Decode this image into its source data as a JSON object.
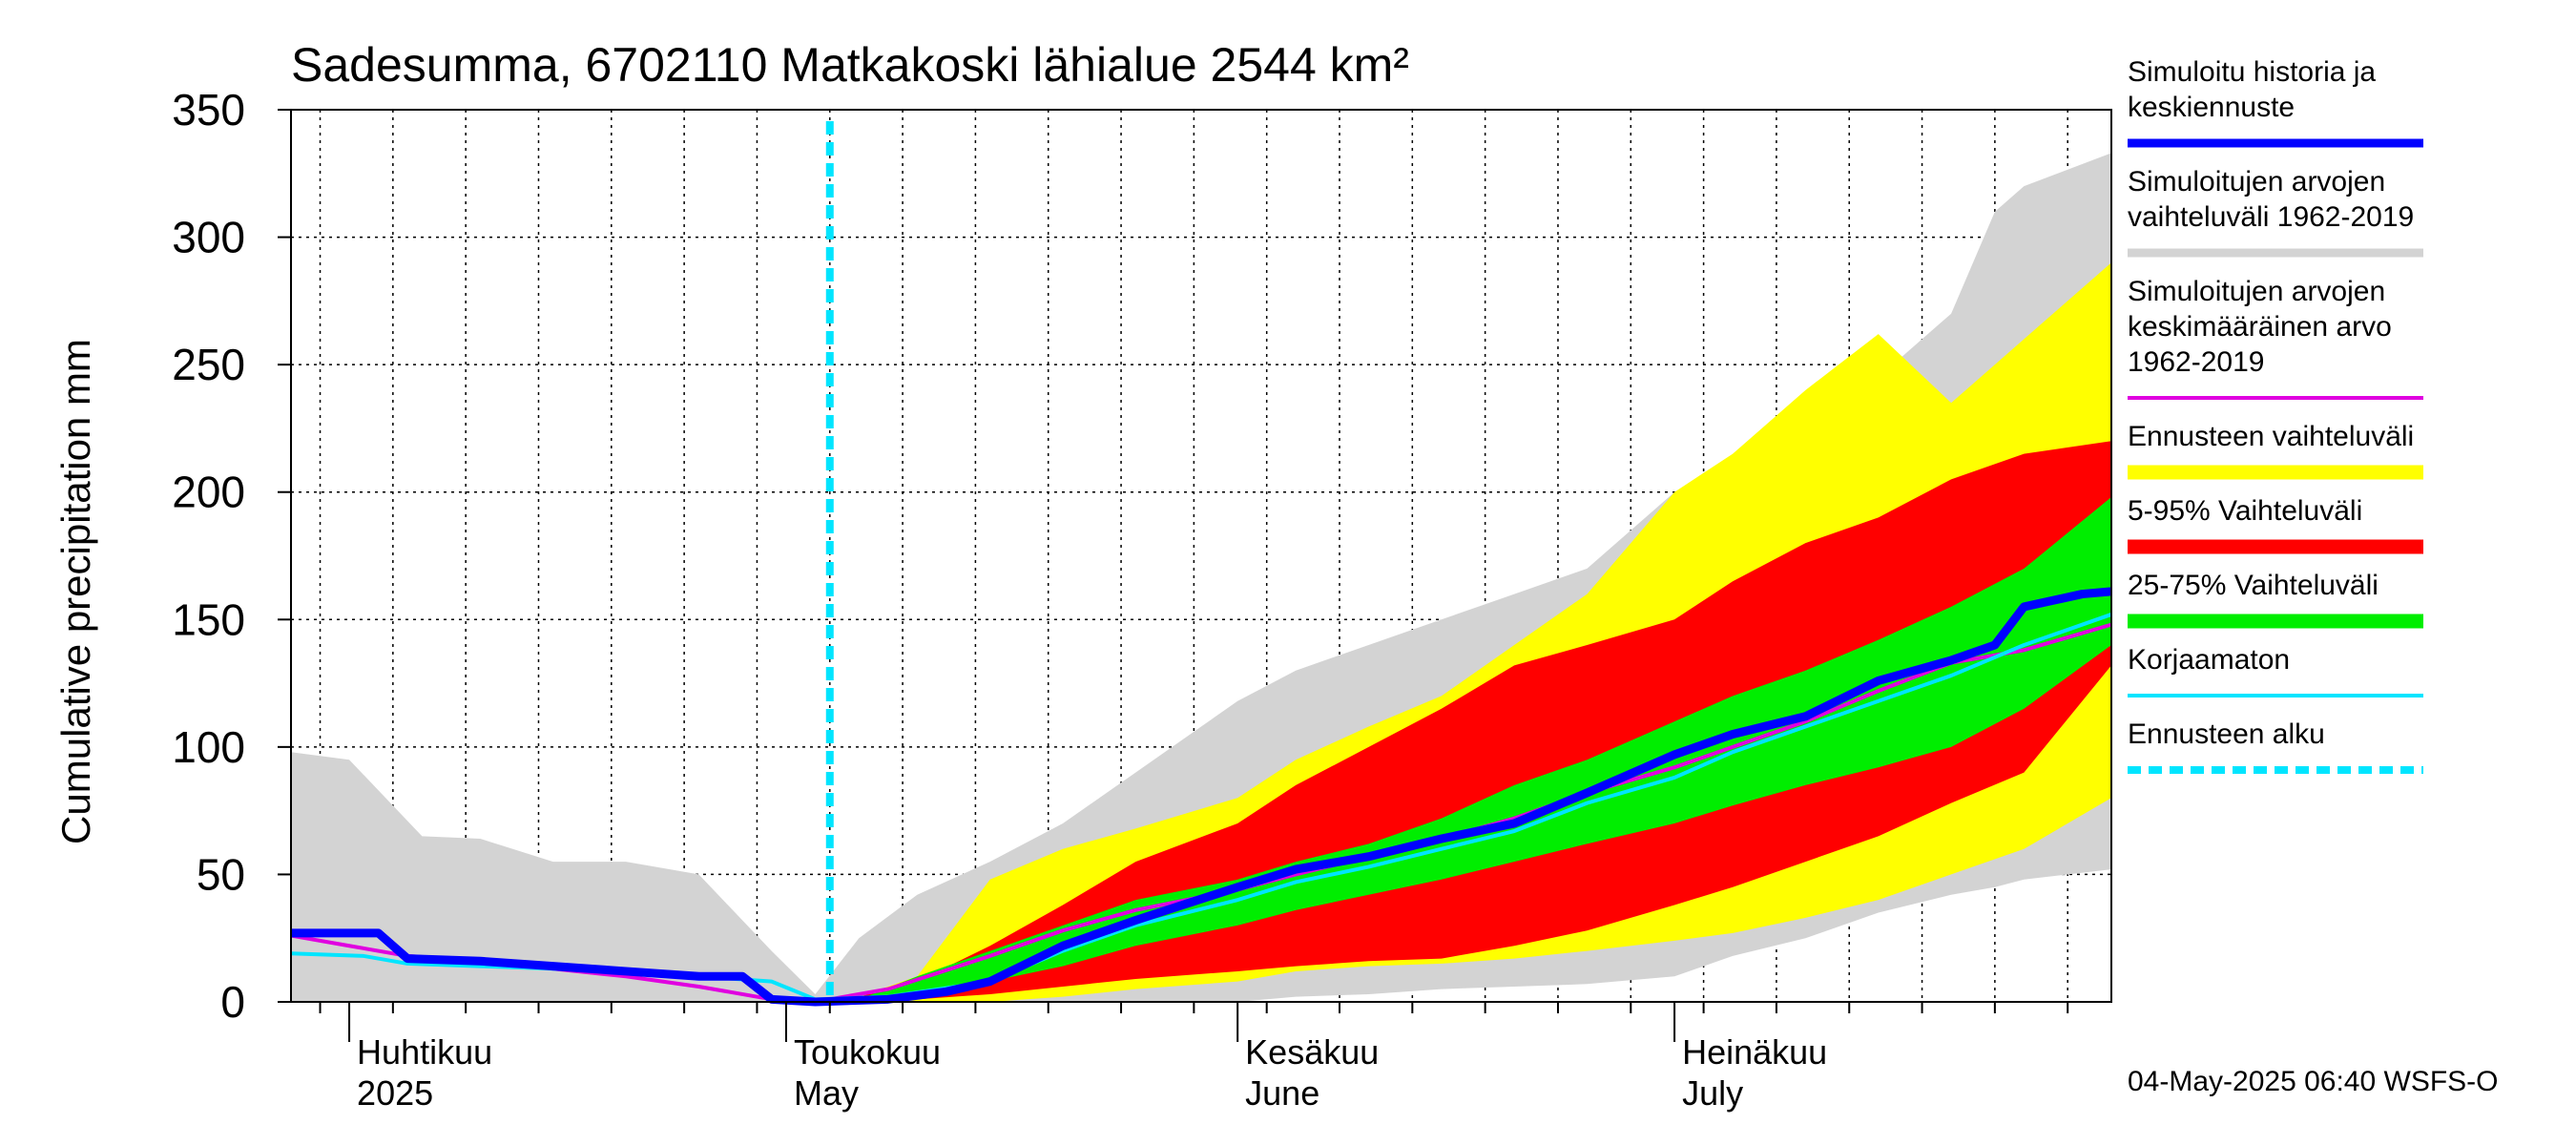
{
  "title": "Sadesumma, 6702110 Matkakoski lähialue 2544 km²",
  "timestamp": "04-May-2025 06:40 WSFS-O",
  "colors": {
    "history": "#0000ff",
    "range_all": "#d3d3d3",
    "mean": "#e000e0",
    "forecast_range": "#ffff00",
    "p5_95": "#ff0000",
    "p25_75": "#00ee00",
    "uncorrected": "#00e5ff",
    "forecast_start": "#00e5ff"
  },
  "legend": [
    {
      "label": "Simuloitu historia ja keskiennuste",
      "lines": [
        "Simuloitu historia ja",
        "keskiennuste"
      ],
      "color": "#0000ff",
      "style": "thick"
    },
    {
      "label": "Simuloitujen arvojen vaihteluväli 1962-2019",
      "lines": [
        "Simuloitujen arvojen",
        "vaihteluväli 1962-2019"
      ],
      "color": "#d3d3d3",
      "style": "thick"
    },
    {
      "label": "Simuloitujen arvojen keskimääräinen arvo 1962-2019",
      "lines": [
        "Simuloitujen arvojen",
        "keskimääräinen arvo",
        "   1962-2019"
      ],
      "color": "#e000e0",
      "style": "thin"
    },
    {
      "label": "Ennusteen vaihteluväli",
      "lines": [
        "Ennusteen vaihteluväli"
      ],
      "color": "#ffff00",
      "style": "band"
    },
    {
      "label": "5-95% Vaihteluväli",
      "lines": [
        "5-95% Vaihteluväli"
      ],
      "color": "#ff0000",
      "style": "band"
    },
    {
      "label": "25-75% Vaihteluväli",
      "lines": [
        "25-75% Vaihteluväli"
      ],
      "color": "#00ee00",
      "style": "band"
    },
    {
      "label": "Korjaamaton",
      "lines": [
        "Korjaamaton"
      ],
      "color": "#00e5ff",
      "style": "thin"
    },
    {
      "label": "Ennusteen alku",
      "lines": [
        "Ennusteen alku"
      ],
      "color": "#00e5ff",
      "style": "dashed"
    }
  ],
  "chart_data": {
    "type": "area",
    "title": "Sadesumma, 6702110 Matkakoski lähialue 2544 km²",
    "ylabel": "Cumulative precipitation   mm",
    "xlabel": "",
    "x_range": [
      "2025-03-28",
      "2025-07-31"
    ],
    "ylim": [
      0,
      350
    ],
    "yticks": [
      0,
      50,
      100,
      150,
      200,
      250,
      300,
      350
    ],
    "grid": true,
    "legend_position": "right",
    "months": [
      {
        "date": "2025-04-01",
        "fi": "Huhtikuu",
        "en": "2025"
      },
      {
        "date": "2025-05-01",
        "fi": "Toukokuu",
        "en": "May"
      },
      {
        "date": "2025-06-01",
        "fi": "Kesäkuu",
        "en": "June"
      },
      {
        "date": "2025-07-01",
        "fi": "Heinäkuu",
        "en": "July"
      }
    ],
    "forecast_start": "2025-05-04",
    "series": [
      {
        "name": "Simuloitujen arvojen vaihteluväli 1962-2019",
        "kind": "band",
        "color": "#d3d3d3",
        "x": [
          "2025-03-28",
          "2025-04-01",
          "2025-04-06",
          "2025-04-10",
          "2025-04-15",
          "2025-04-20",
          "2025-04-25",
          "2025-04-30",
          "2025-05-03",
          "2025-05-06",
          "2025-05-10",
          "2025-05-15",
          "2025-05-20",
          "2025-05-25",
          "2025-06-01",
          "2025-06-05",
          "2025-06-10",
          "2025-06-15",
          "2025-06-20",
          "2025-06-25",
          "2025-07-01",
          "2025-07-05",
          "2025-07-10",
          "2025-07-15",
          "2025-07-20",
          "2025-07-23",
          "2025-07-25",
          "2025-07-31"
        ],
        "low": [
          0,
          0,
          0,
          0,
          0,
          0,
          0,
          0,
          0,
          0,
          0,
          0,
          0,
          0,
          0,
          2,
          3,
          5,
          6,
          7,
          10,
          18,
          25,
          35,
          42,
          45,
          48,
          52
        ],
        "high": [
          98,
          95,
          65,
          64,
          55,
          55,
          50,
          20,
          3,
          25,
          42,
          55,
          70,
          90,
          118,
          130,
          140,
          150,
          160,
          170,
          200,
          210,
          225,
          245,
          270,
          310,
          320,
          333
        ]
      },
      {
        "name": "Ennusteen vaihteluväli",
        "kind": "band",
        "color": "#ffff00",
        "x": [
          "2025-05-03",
          "2025-05-06",
          "2025-05-10",
          "2025-05-15",
          "2025-05-20",
          "2025-05-25",
          "2025-06-01",
          "2025-06-05",
          "2025-06-10",
          "2025-06-15",
          "2025-06-20",
          "2025-06-25",
          "2025-07-01",
          "2025-07-05",
          "2025-07-10",
          "2025-07-15",
          "2025-07-20",
          "2025-07-25",
          "2025-07-31"
        ],
        "low": [
          0,
          0,
          0,
          0,
          2,
          5,
          8,
          12,
          14,
          15,
          17,
          20,
          24,
          27,
          33,
          40,
          50,
          60,
          80
        ],
        "high": [
          0,
          2,
          10,
          48,
          60,
          68,
          80,
          95,
          108,
          120,
          140,
          160,
          200,
          215,
          240,
          262,
          235,
          260,
          290
        ]
      },
      {
        "name": "5-95% Vaihteluväli",
        "kind": "band",
        "color": "#ff0000",
        "x": [
          "2025-05-03",
          "2025-05-06",
          "2025-05-10",
          "2025-05-15",
          "2025-05-20",
          "2025-05-25",
          "2025-06-01",
          "2025-06-05",
          "2025-06-10",
          "2025-06-15",
          "2025-06-20",
          "2025-06-25",
          "2025-07-01",
          "2025-07-05",
          "2025-07-10",
          "2025-07-15",
          "2025-07-20",
          "2025-07-25",
          "2025-07-31"
        ],
        "low": [
          0,
          0,
          1,
          3,
          6,
          9,
          12,
          14,
          16,
          17,
          22,
          28,
          38,
          45,
          55,
          65,
          78,
          90,
          132
        ],
        "high": [
          0,
          2,
          8,
          22,
          38,
          55,
          70,
          85,
          100,
          115,
          132,
          140,
          150,
          165,
          180,
          190,
          205,
          215,
          220
        ]
      },
      {
        "name": "25-75% Vaihteluväli",
        "kind": "band",
        "color": "#00ee00",
        "x": [
          "2025-05-03",
          "2025-05-06",
          "2025-05-10",
          "2025-05-15",
          "2025-05-20",
          "2025-05-25",
          "2025-06-01",
          "2025-06-05",
          "2025-06-10",
          "2025-06-15",
          "2025-06-20",
          "2025-06-25",
          "2025-07-01",
          "2025-07-05",
          "2025-07-10",
          "2025-07-15",
          "2025-07-20",
          "2025-07-25",
          "2025-07-31"
        ],
        "low": [
          0,
          0,
          3,
          8,
          14,
          22,
          30,
          36,
          42,
          48,
          55,
          62,
          70,
          77,
          85,
          92,
          100,
          115,
          140
        ],
        "high": [
          0,
          1,
          10,
          20,
          30,
          40,
          48,
          55,
          62,
          72,
          85,
          95,
          110,
          120,
          130,
          142,
          155,
          170,
          198
        ]
      },
      {
        "name": "Simuloitujen arvojen keskimääräinen arvo 1962-2019",
        "kind": "line",
        "color": "#e000e0",
        "width": 4,
        "x": [
          "2025-03-28",
          "2025-04-01",
          "2025-04-05",
          "2025-04-10",
          "2025-04-15",
          "2025-04-20",
          "2025-04-25",
          "2025-04-30",
          "2025-05-03",
          "2025-05-08",
          "2025-05-15",
          "2025-05-20",
          "2025-05-25",
          "2025-06-01",
          "2025-06-05",
          "2025-06-10",
          "2025-06-15",
          "2025-06-20",
          "2025-06-25",
          "2025-07-01",
          "2025-07-05",
          "2025-07-10",
          "2025-07-15",
          "2025-07-20",
          "2025-07-25",
          "2025-07-31"
        ],
        "y": [
          26,
          22,
          18,
          16,
          13,
          10,
          6,
          1,
          0,
          5,
          18,
          28,
          36,
          44,
          50,
          57,
          64,
          72,
          82,
          92,
          100,
          110,
          122,
          133,
          138,
          148
        ]
      },
      {
        "name": "Korjaamaton",
        "kind": "line",
        "color": "#00e5ff",
        "width": 4,
        "x": [
          "2025-03-28",
          "2025-04-02",
          "2025-04-05",
          "2025-04-10",
          "2025-04-20",
          "2025-04-25",
          "2025-04-30",
          "2025-05-03",
          "2025-05-08",
          "2025-05-15",
          "2025-05-20",
          "2025-05-25",
          "2025-06-01",
          "2025-06-05",
          "2025-06-10",
          "2025-06-15",
          "2025-06-20",
          "2025-06-25",
          "2025-07-01",
          "2025-07-05",
          "2025-07-10",
          "2025-07-15",
          "2025-07-20",
          "2025-07-25",
          "2025-07-31"
        ],
        "y": [
          19,
          18,
          15,
          14,
          12,
          10,
          8,
          1,
          2,
          8,
          20,
          30,
          40,
          47,
          53,
          60,
          67,
          78,
          88,
          98,
          108,
          118,
          128,
          140,
          152
        ]
      },
      {
        "name": "Simuloitu historia ja keskiennuste",
        "kind": "line",
        "color": "#0000ff",
        "width": 9,
        "x": [
          "2025-03-28",
          "2025-04-03",
          "2025-04-05",
          "2025-04-10",
          "2025-04-15",
          "2025-04-20",
          "2025-04-25",
          "2025-04-28",
          "2025-04-30",
          "2025-05-03",
          "2025-05-08",
          "2025-05-12",
          "2025-05-15",
          "2025-05-20",
          "2025-05-25",
          "2025-06-01",
          "2025-06-05",
          "2025-06-10",
          "2025-06-15",
          "2025-06-20",
          "2025-06-25",
          "2025-07-01",
          "2025-07-05",
          "2025-07-10",
          "2025-07-15",
          "2025-07-20",
          "2025-07-23",
          "2025-07-25",
          "2025-07-29",
          "2025-07-31"
        ],
        "y": [
          27,
          27,
          17,
          16,
          14,
          12,
          10,
          10,
          1,
          0,
          1,
          4,
          8,
          22,
          32,
          45,
          52,
          57,
          64,
          70,
          82,
          97,
          105,
          112,
          126,
          134,
          140,
          155,
          160,
          161
        ]
      }
    ]
  }
}
